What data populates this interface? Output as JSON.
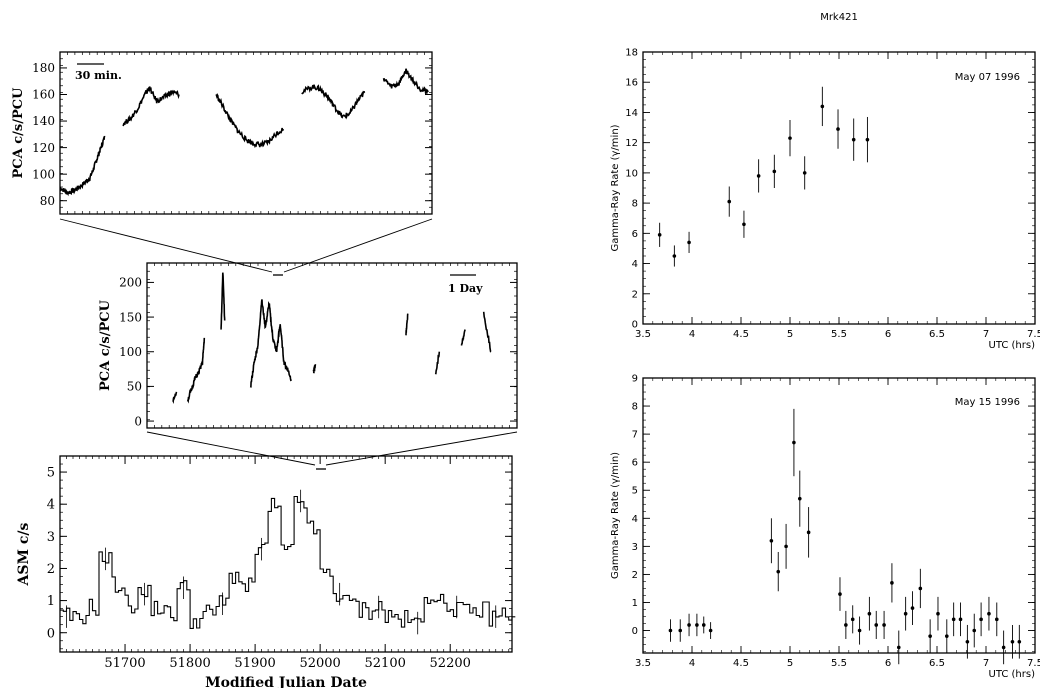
{
  "chart_data": [
    {
      "id": "pca_zoom_30min",
      "type": "line",
      "ylabel": "PCA c/s/PCU",
      "xlabel": "",
      "ylim": [
        70,
        192
      ],
      "yticks": [
        80,
        100,
        120,
        140,
        160,
        180
      ],
      "scale_bar_label": "30 min.",
      "segments": [
        {
          "points": [
            [
              0,
              90
            ],
            [
              0.02,
              86
            ],
            [
              0.04,
              88
            ],
            [
              0.06,
              92
            ],
            [
              0.08,
              97
            ],
            [
              0.09,
              104
            ],
            [
              0.1,
              112
            ],
            [
              0.11,
              120
            ],
            [
              0.12,
              128
            ]
          ]
        },
        {
          "points": [
            [
              0.17,
              138
            ],
            [
              0.19,
              142
            ],
            [
              0.21,
              150
            ],
            [
              0.23,
              161
            ],
            [
              0.24,
              165
            ],
            [
              0.26,
              155
            ],
            [
              0.28,
              158
            ],
            [
              0.3,
              162
            ],
            [
              0.32,
              160
            ]
          ]
        },
        {
          "points": [
            [
              0.42,
              160
            ],
            [
              0.44,
              150
            ],
            [
              0.46,
              140
            ],
            [
              0.48,
              132
            ],
            [
              0.5,
              126
            ],
            [
              0.52,
              123
            ],
            [
              0.54,
              122
            ],
            [
              0.56,
              124
            ],
            [
              0.58,
              130
            ],
            [
              0.6,
              134
            ]
          ]
        },
        {
          "points": [
            [
              0.65,
              162
            ],
            [
              0.68,
              166
            ],
            [
              0.7,
              164
            ],
            [
              0.72,
              158
            ],
            [
              0.74,
              150
            ],
            [
              0.76,
              143
            ],
            [
              0.78,
              146
            ],
            [
              0.8,
              155
            ],
            [
              0.82,
              162
            ]
          ]
        },
        {
          "points": [
            [
              0.87,
              172
            ],
            [
              0.89,
              166
            ],
            [
              0.91,
              168
            ],
            [
              0.93,
              178
            ],
            [
              0.95,
              170
            ],
            [
              0.97,
              164
            ],
            [
              0.99,
              162
            ]
          ]
        }
      ]
    },
    {
      "id": "pca_mid_1day",
      "type": "line",
      "ylabel": "PCA c/s/PCU",
      "xlabel": "",
      "ylim": [
        -10,
        228
      ],
      "yticks": [
        0,
        50,
        100,
        150,
        200
      ],
      "scale_bar_label": "1 Day",
      "segments": [
        {
          "points": [
            [
              0.07,
              28
            ],
            [
              0.08,
              42
            ]
          ]
        },
        {
          "points": [
            [
              0.11,
              30
            ],
            [
              0.12,
              45
            ],
            [
              0.13,
              62
            ],
            [
              0.14,
              70
            ],
            [
              0.15,
              85
            ],
            [
              0.155,
              120
            ]
          ]
        },
        {
          "points": [
            [
              0.2,
              130
            ],
            [
              0.205,
              215
            ],
            [
              0.21,
              145
            ]
          ]
        },
        {
          "points": [
            [
              0.28,
              50
            ],
            [
              0.29,
              85
            ],
            [
              0.3,
              110
            ],
            [
              0.31,
              175
            ],
            [
              0.32,
              135
            ],
            [
              0.33,
              170
            ],
            [
              0.34,
              120
            ],
            [
              0.35,
              100
            ],
            [
              0.36,
              140
            ],
            [
              0.37,
              85
            ],
            [
              0.38,
              75
            ],
            [
              0.39,
              60
            ]
          ]
        },
        {
          "points": [
            [
              0.45,
              70
            ],
            [
              0.455,
              82
            ]
          ]
        },
        {
          "points": [
            [
              0.7,
              125
            ],
            [
              0.705,
              155
            ]
          ]
        },
        {
          "points": [
            [
              0.78,
              65
            ],
            [
              0.79,
              100
            ]
          ]
        },
        {
          "points": [
            [
              0.85,
              110
            ],
            [
              0.86,
              132
            ]
          ]
        },
        {
          "points": [
            [
              0.91,
              155
            ],
            [
              0.93,
              100
            ]
          ]
        }
      ]
    },
    {
      "id": "asm_lightcurve",
      "type": "line",
      "xlabel": "Modified Julian Date",
      "ylabel": "ASM c/s",
      "xlim": [
        51600,
        52295
      ],
      "ylim": [
        -0.6,
        5.5
      ],
      "xticks": [
        51700,
        51800,
        51900,
        52000,
        52100,
        52200
      ],
      "yticks": [
        0,
        1,
        2,
        3,
        4,
        5
      ],
      "x": [
        51610,
        51630,
        51650,
        51670,
        51690,
        51710,
        51730,
        51750,
        51770,
        51790,
        51810,
        51830,
        51850,
        51870,
        51890,
        51910,
        51930,
        51950,
        51970,
        51990,
        52010,
        52030,
        52050,
        52070,
        52090,
        52110,
        52130,
        52150,
        52170,
        52190,
        52210,
        52230,
        52250,
        52270,
        52290
      ],
      "y": [
        0.5,
        0.4,
        0.8,
        2.3,
        1.5,
        0.9,
        1.2,
        0.8,
        0.6,
        1.4,
        0.4,
        0.6,
        0.9,
        1.8,
        1.4,
        2.6,
        3.9,
        2.5,
        4.1,
        3.2,
        1.8,
        1.2,
        0.9,
        0.7,
        0.8,
        0.5,
        0.4,
        0.3,
        1.2,
        0.9,
        0.8,
        0.6,
        0.7,
        0.5,
        0.6
      ]
    },
    {
      "id": "whipple_may07",
      "type": "scatter",
      "title": "Mrk421",
      "annotation": "May 07 1996",
      "xlabel": "UTC (hrs)",
      "ylabel": "Gamma-Ray Rate (γ/min)",
      "xlim": [
        3.5,
        7.5
      ],
      "ylim": [
        0,
        18
      ],
      "xticks": [
        3.5,
        4,
        4.5,
        5,
        5.5,
        6,
        6.5,
        7,
        7.5
      ],
      "yticks": [
        0,
        2,
        4,
        6,
        8,
        10,
        12,
        14,
        16,
        18
      ],
      "x": [
        3.67,
        3.82,
        3.97,
        4.38,
        4.53,
        4.68,
        4.84,
        5.0,
        5.15,
        5.33,
        5.49,
        5.65,
        5.79
      ],
      "y": [
        5.9,
        4.5,
        5.4,
        8.1,
        6.6,
        9.8,
        10.1,
        12.3,
        10.0,
        14.4,
        12.9,
        12.2,
        12.2
      ],
      "yerr": [
        0.8,
        0.7,
        0.7,
        1.0,
        0.9,
        1.1,
        1.1,
        1.2,
        1.1,
        1.3,
        1.3,
        1.4,
        1.5
      ]
    },
    {
      "id": "whipple_may15",
      "type": "scatter",
      "annotation": "May 15 1996",
      "xlabel": "UTC (hrs)",
      "ylabel": "Gamma-Ray Rate (γ/min)",
      "xlim": [
        3.5,
        7.5
      ],
      "ylim": [
        -0.8,
        9
      ],
      "xticks": [
        3.5,
        4,
        4.5,
        5,
        5.5,
        6,
        6.5,
        7,
        7.5
      ],
      "yticks": [
        0,
        1,
        2,
        3,
        4,
        5,
        6,
        7,
        8,
        9
      ],
      "x": [
        3.78,
        3.88,
        3.97,
        4.05,
        4.12,
        4.19,
        4.81,
        4.88,
        4.96,
        5.04,
        5.1,
        5.19,
        5.51,
        5.57,
        5.64,
        5.71,
        5.81,
        5.88,
        5.96,
        6.04,
        6.11,
        6.18,
        6.25,
        6.33,
        6.43,
        6.51,
        6.6,
        6.67,
        6.74,
        6.81,
        6.88,
        6.95,
        7.03,
        7.11,
        7.18,
        7.27,
        7.34
      ],
      "y": [
        0.0,
        0.0,
        0.2,
        0.2,
        0.2,
        0.0,
        3.2,
        2.1,
        3.0,
        6.7,
        4.7,
        3.5,
        1.3,
        0.2,
        0.4,
        0.0,
        0.6,
        0.2,
        0.2,
        1.7,
        -0.6,
        0.6,
        0.8,
        1.5,
        -0.2,
        0.6,
        -0.2,
        0.4,
        0.4,
        -0.4,
        0.0,
        0.4,
        0.6,
        0.4,
        -0.6,
        -0.4,
        -0.4
      ],
      "yerr": [
        0.4,
        0.4,
        0.4,
        0.4,
        0.3,
        0.3,
        0.8,
        0.7,
        0.8,
        1.2,
        1.0,
        0.9,
        0.6,
        0.5,
        0.5,
        0.5,
        0.6,
        0.5,
        0.5,
        0.7,
        0.6,
        0.6,
        0.6,
        0.7,
        0.6,
        0.6,
        0.6,
        0.6,
        0.6,
        0.6,
        0.6,
        0.6,
        0.6,
        0.6,
        0.6,
        0.6,
        0.6
      ]
    }
  ]
}
